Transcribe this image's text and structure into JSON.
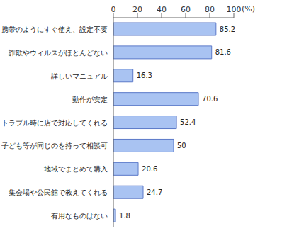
{
  "chart_data": {
    "type": "bar",
    "orientation": "horizontal",
    "x_label": "(%)",
    "categories": [
      "携帯のようにすぐ使え、設定不要",
      "詐欺やウィルスがほとんどない",
      "詳しいマニュアル",
      "動作が安定",
      "トラブル時に店で対応してくれる",
      "子ども等が同じのを持って相談可",
      "地域でまとめて購入",
      "集会場や公民館で教えてくれる",
      "有用なものはない"
    ],
    "values": [
      85.2,
      81.6,
      16.3,
      70.6,
      52.4,
      50.0,
      20.6,
      24.7,
      1.8
    ],
    "color": "#a9c3f2",
    "xlim": [
      0,
      100
    ],
    "xticks": [
      0,
      20,
      40,
      60,
      80,
      100
    ],
    "grid": false,
    "data_labels": true
  }
}
